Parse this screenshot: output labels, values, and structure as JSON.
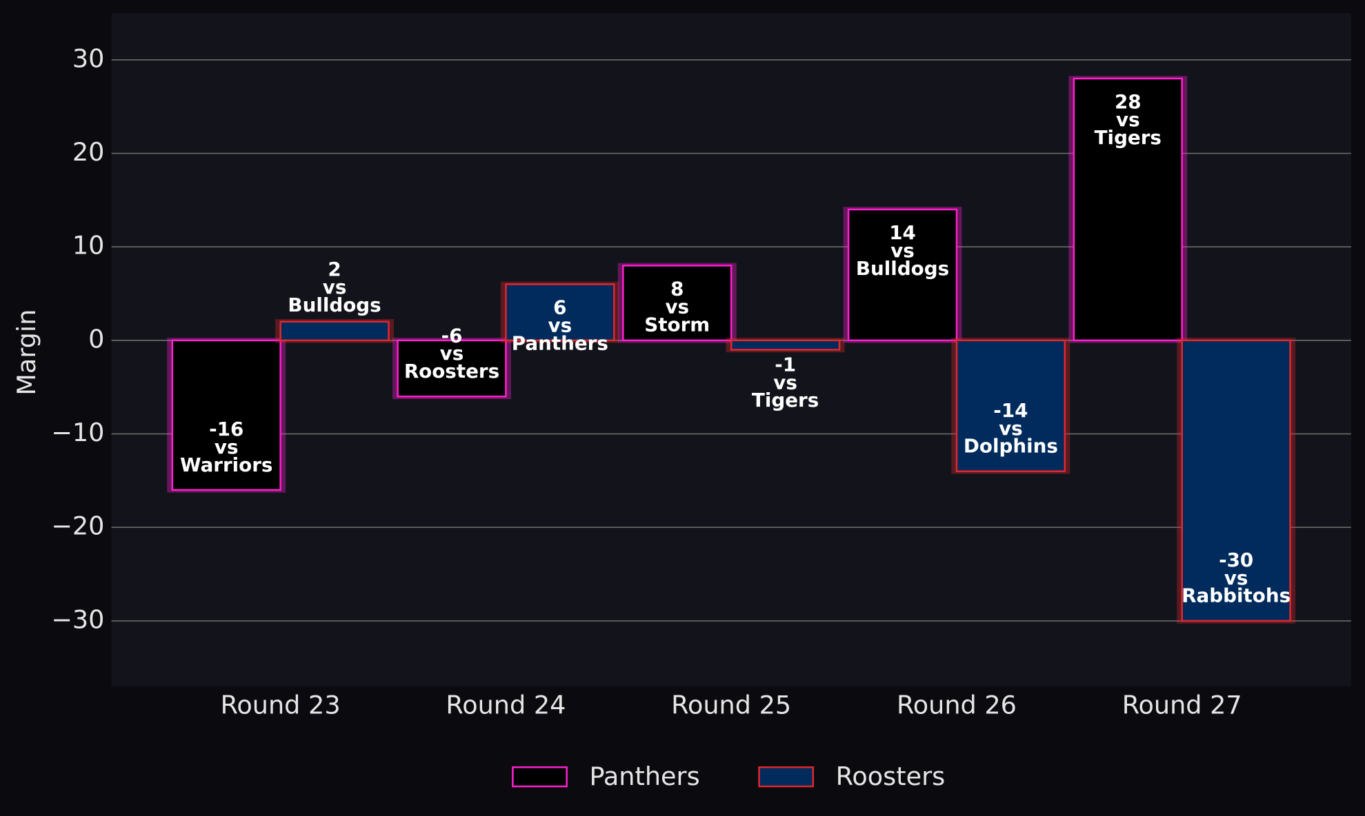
{
  "chart_data": {
    "type": "bar",
    "ylabel": "Margin",
    "categories": [
      "Round 23",
      "Round 24",
      "Round 25",
      "Round 26",
      "Round 27"
    ],
    "series": [
      {
        "name": "Panthers",
        "color": "#000000",
        "edgecolor": "#ff1fd0",
        "values": [
          -16,
          -6,
          8,
          14,
          28
        ],
        "value_labels": [
          "-16\nvs\nWarriors",
          "-6\nvs\nRoosters",
          "8\nvs\nStorm",
          "14\nvs\nBulldogs",
          "28\nvs\nTigers"
        ]
      },
      {
        "name": "Roosters",
        "color": "#002b5c",
        "edgecolor": "#e0282e",
        "values": [
          2,
          6,
          -1,
          -14,
          -30
        ],
        "value_labels": [
          "2\nvs\nBulldogs",
          "6\nvs\nPanthers",
          "-1\nvs\nTigers",
          "-14\nvs\nDolphins",
          "-30\nvs\nRabbitohs"
        ]
      }
    ],
    "ylim": [
      -37,
      35
    ],
    "yticks": [
      {
        "value": -30,
        "label": "−30"
      },
      {
        "value": -20,
        "label": "−20"
      },
      {
        "value": -10,
        "label": "−10"
      },
      0,
      10,
      20,
      30
    ],
    "grid": true,
    "legend": "lower center"
  }
}
